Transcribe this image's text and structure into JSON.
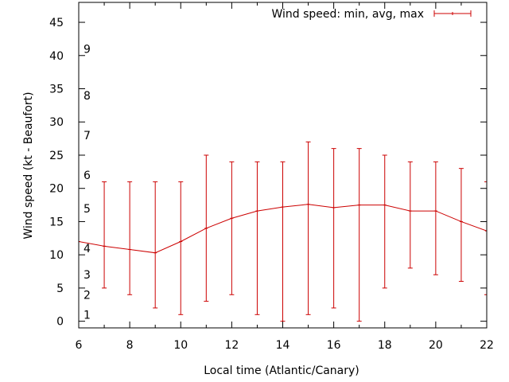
{
  "chart_data": {
    "type": "line",
    "title": "",
    "xlabel": "Local time (Atlantic/Canary)",
    "ylabel": "Wind speed (kt - Beaufort)",
    "xlim": [
      6,
      22
    ],
    "ylim": [
      -1,
      48
    ],
    "x_ticks": [
      6,
      8,
      10,
      12,
      14,
      16,
      18,
      20,
      22
    ],
    "y_ticks": [
      0,
      5,
      10,
      15,
      20,
      25,
      30,
      35,
      40,
      45
    ],
    "x_tick_labels": [
      "6",
      "8",
      "10",
      "12",
      "14",
      "16",
      "18",
      "20",
      "22"
    ],
    "y_tick_labels": [
      "0",
      "5",
      "10",
      "15",
      "20",
      "25",
      "30",
      "35",
      "40",
      "45"
    ],
    "beaufort_labels": [
      {
        "label": "1",
        "y": 1
      },
      {
        "label": "2",
        "y": 4
      },
      {
        "label": "3",
        "y": 7
      },
      {
        "label": "4",
        "y": 11
      },
      {
        "label": "5",
        "y": 17
      },
      {
        "label": "6",
        "y": 22
      },
      {
        "label": "7",
        "y": 28
      },
      {
        "label": "8",
        "y": 34
      },
      {
        "label": "9",
        "y": 41
      }
    ],
    "legend": {
      "position": "top-right"
    },
    "series": [
      {
        "name": "Wind speed: min, avg, max",
        "color": "#cc0000",
        "x": [
          6,
          7,
          8,
          9,
          10,
          11,
          12,
          13,
          14,
          15,
          16,
          17,
          18,
          19,
          20,
          21,
          22
        ],
        "avg": [
          12,
          11.3,
          10.8,
          10.3,
          12,
          14,
          15.5,
          16.6,
          17.2,
          17.6,
          17.1,
          17.5,
          17.5,
          16.6,
          16.6,
          15,
          13.6
        ],
        "min": [
          null,
          5,
          4,
          2,
          1,
          3,
          4,
          1,
          0,
          1,
          2,
          0,
          5,
          8,
          7,
          6,
          4
        ],
        "max": [
          null,
          21,
          21,
          21,
          21,
          25,
          24,
          24,
          24,
          27,
          26,
          26,
          25,
          24,
          24,
          23,
          21
        ]
      }
    ]
  }
}
